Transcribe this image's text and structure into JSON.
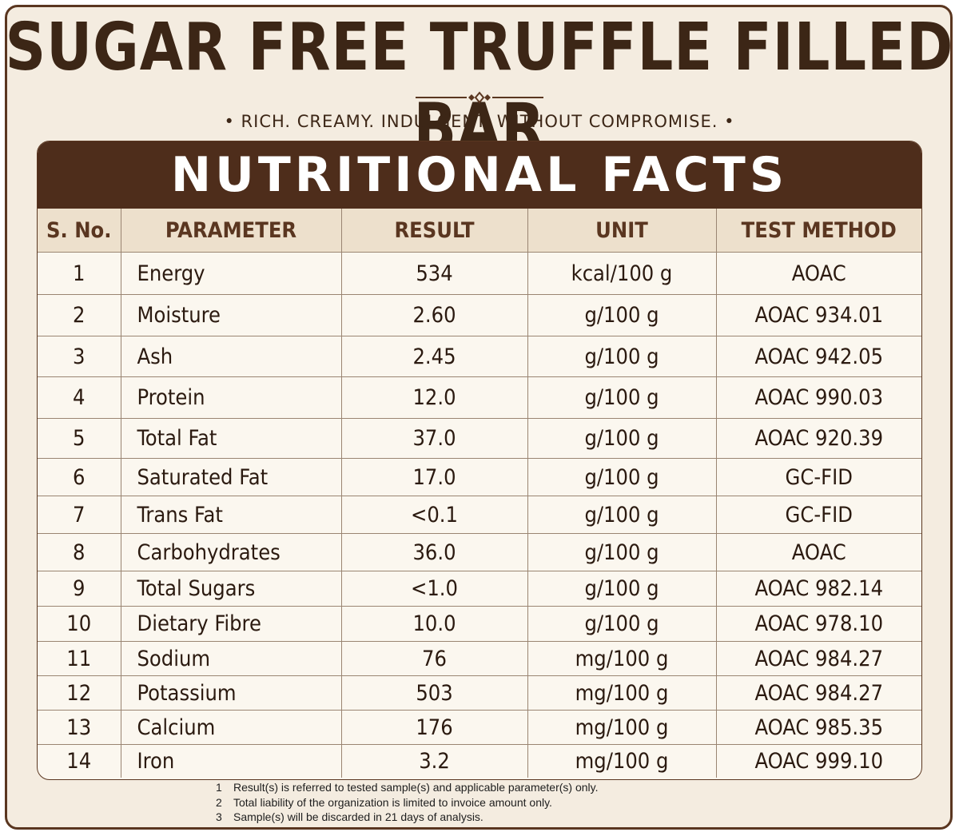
{
  "header": {
    "title": "SUGAR FREE TRUFFLE FILLED BAR",
    "tagline": "• RICH. CREAMY. INDULGENT. WITHOUT COMPROMISE. •"
  },
  "table": {
    "banner": "NUTRITIONAL FACTS",
    "columns": [
      "S. No.",
      "PARAMETER",
      "RESULT",
      "UNIT",
      "TEST METHOD"
    ],
    "rows": [
      {
        "sno": "1",
        "parameter": "Energy",
        "result": "534",
        "unit": "kcal/100 g",
        "method": "AOAC"
      },
      {
        "sno": "2",
        "parameter": "Moisture",
        "result": "2.60",
        "unit": "g/100 g",
        "method": "AOAC 934.01"
      },
      {
        "sno": "3",
        "parameter": "Ash",
        "result": "2.45",
        "unit": "g/100 g",
        "method": "AOAC 942.05"
      },
      {
        "sno": "4",
        "parameter": "Protein",
        "result": "12.0",
        "unit": "g/100 g",
        "method": "AOAC 990.03"
      },
      {
        "sno": "5",
        "parameter": "Total Fat",
        "result": "37.0",
        "unit": "g/100 g",
        "method": "AOAC 920.39"
      },
      {
        "sno": "6",
        "parameter": "Saturated Fat",
        "result": "17.0",
        "unit": "g/100 g",
        "method": "GC-FID"
      },
      {
        "sno": "7",
        "parameter": "Trans Fat",
        "result": "<0.1",
        "unit": "g/100 g",
        "method": "GC-FID"
      },
      {
        "sno": "8",
        "parameter": "Carbohydrates",
        "result": "36.0",
        "unit": "g/100 g",
        "method": "AOAC"
      },
      {
        "sno": "9",
        "parameter": "Total Sugars",
        "result": "<1.0",
        "unit": "g/100 g",
        "method": "AOAC 982.14"
      },
      {
        "sno": "10",
        "parameter": "Dietary Fibre",
        "result": "10.0",
        "unit": "g/100 g",
        "method": "AOAC 978.10"
      },
      {
        "sno": "11",
        "parameter": "Sodium",
        "result": "76",
        "unit": "mg/100 g",
        "method": "AOAC 984.27"
      },
      {
        "sno": "12",
        "parameter": "Potassium",
        "result": "503",
        "unit": "mg/100 g",
        "method": "AOAC 984.27"
      },
      {
        "sno": "13",
        "parameter": "Calcium",
        "result": "176",
        "unit": "mg/100 g",
        "method": "AOAC 985.35"
      },
      {
        "sno": "14",
        "parameter": "Iron",
        "result": "3.2",
        "unit": "mg/100 g",
        "method": "AOAC 999.10"
      }
    ]
  },
  "footnotes": [
    {
      "num": "1",
      "text": "Result(s) is referred to tested sample(s) and applicable parameter(s) only."
    },
    {
      "num": "2",
      "text": "Total liability of the organization is limited to invoice amount only."
    },
    {
      "num": "3",
      "text": "Sample(s) will be discarded in 21 days of analysis."
    }
  ],
  "colors": {
    "brown_dark": "#4e2d1b",
    "title_brown": "#3c2616",
    "background": "#f4ece0",
    "header_row": "#ede0cc"
  }
}
